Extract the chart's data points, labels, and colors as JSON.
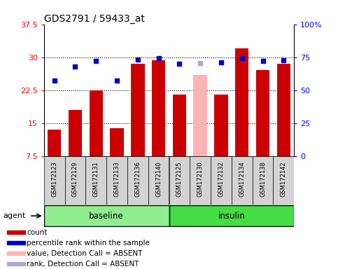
{
  "title": "GDS2791 / 59433_at",
  "samples": [
    "GSM172123",
    "GSM172129",
    "GSM172131",
    "GSM172133",
    "GSM172136",
    "GSM172140",
    "GSM172125",
    "GSM172130",
    "GSM172132",
    "GSM172134",
    "GSM172138",
    "GSM172142"
  ],
  "bar_values": [
    13.5,
    18.0,
    22.5,
    13.8,
    28.5,
    29.3,
    21.5,
    26.0,
    21.5,
    32.0,
    27.0,
    28.5
  ],
  "bar_colors": [
    "#cc0000",
    "#cc0000",
    "#cc0000",
    "#cc0000",
    "#cc0000",
    "#cc0000",
    "#cc0000",
    "#ffb3b3",
    "#cc0000",
    "#cc0000",
    "#cc0000",
    "#cc0000"
  ],
  "rank_values": [
    57.0,
    68.0,
    72.0,
    57.5,
    73.0,
    74.0,
    70.0,
    70.5,
    71.0,
    74.5,
    72.0,
    72.5
  ],
  "rank_colors": [
    "#0000cc",
    "#0000cc",
    "#0000cc",
    "#0000cc",
    "#0000cc",
    "#0000cc",
    "#0000cc",
    "#aaaacc",
    "#0000cc",
    "#0000cc",
    "#0000cc",
    "#0000cc"
  ],
  "ylim_left": [
    7.5,
    37.5
  ],
  "ylim_right": [
    0,
    100
  ],
  "yticks_left": [
    7.5,
    15.0,
    22.5,
    30.0,
    37.5
  ],
  "yticks_right": [
    0,
    25,
    50,
    75,
    100
  ],
  "ytick_labels_left": [
    "7.5",
    "15",
    "22.5",
    "30",
    "37.5"
  ],
  "ytick_labels_right": [
    "0",
    "25",
    "50",
    "75",
    "100%"
  ],
  "hlines": [
    15.0,
    22.5,
    30.0
  ],
  "baseline_indices": [
    0,
    1,
    2,
    3,
    4,
    5
  ],
  "insulin_indices": [
    6,
    7,
    8,
    9,
    10,
    11
  ],
  "baseline_color": "#90ee90",
  "insulin_color": "#44dd44",
  "sample_box_color": "#d3d3d3",
  "legend_items": [
    {
      "label": "count",
      "color": "#cc0000"
    },
    {
      "label": "percentile rank within the sample",
      "color": "#0000cc"
    },
    {
      "label": "value, Detection Call = ABSENT",
      "color": "#ffb3b3"
    },
    {
      "label": "rank, Detection Call = ABSENT",
      "color": "#aaaacc"
    }
  ],
  "agent_label": "agent"
}
